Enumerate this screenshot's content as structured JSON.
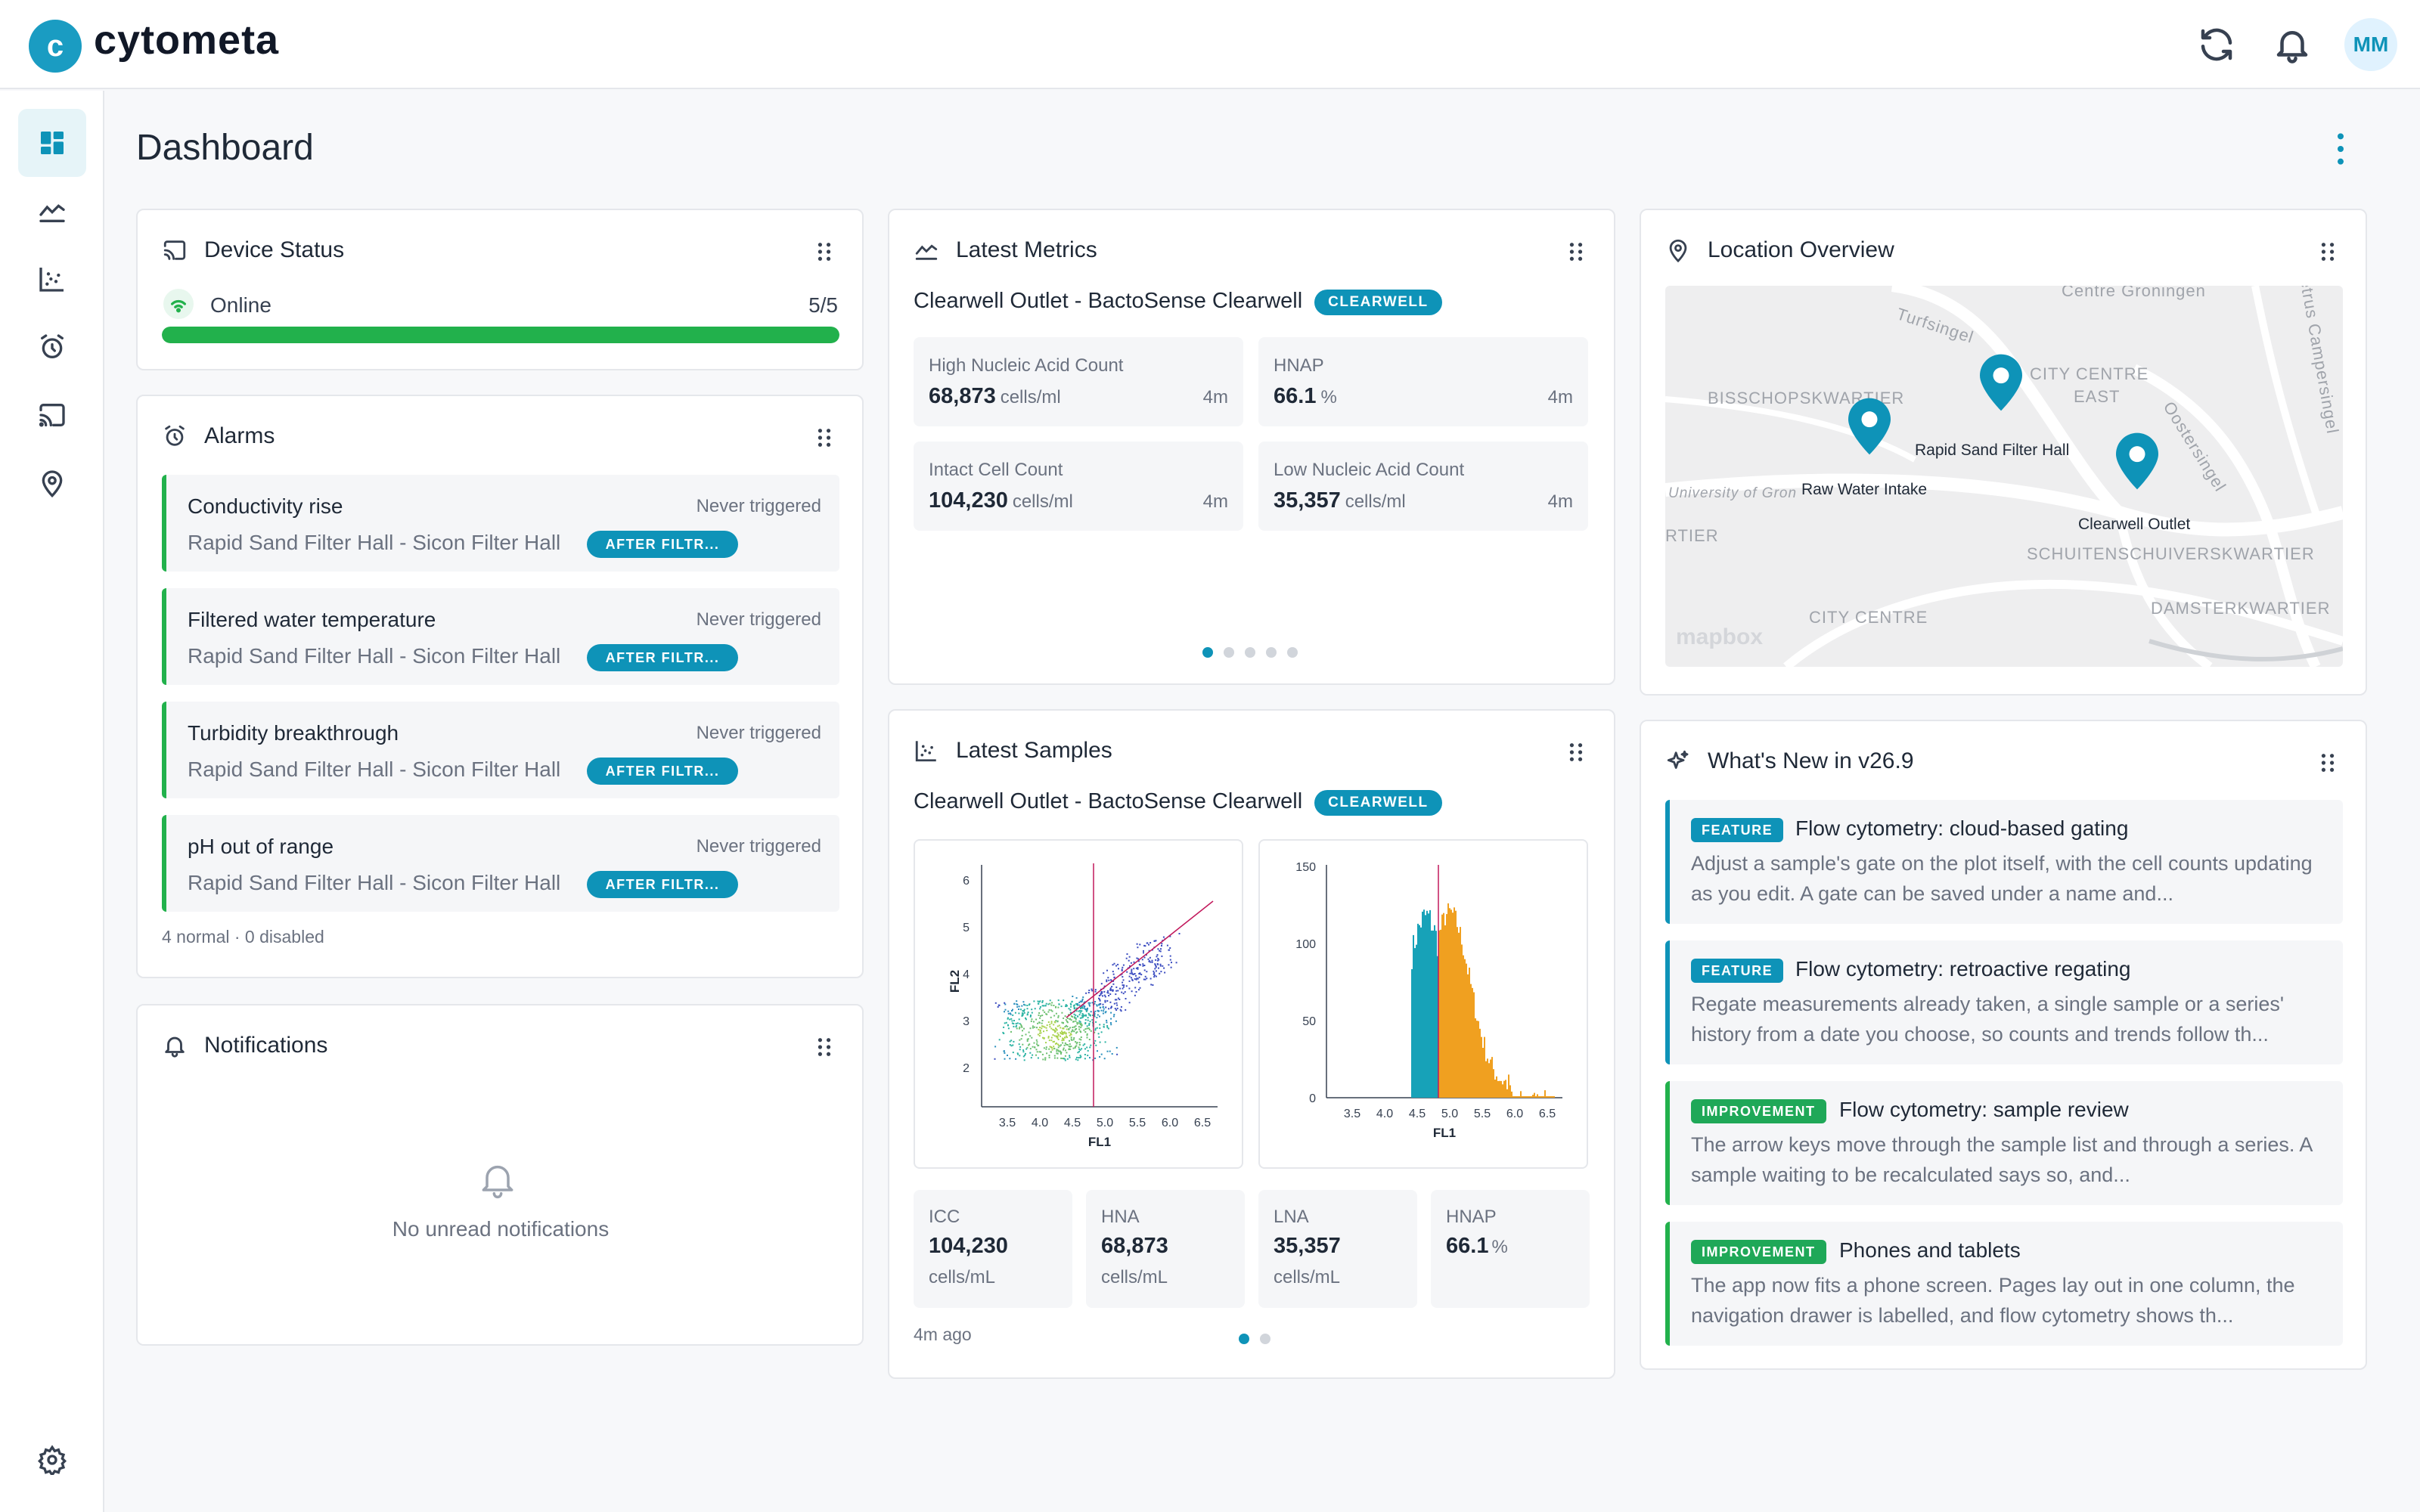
{
  "app": {
    "logo_letter": "c",
    "name": "cytometa",
    "user_initials": "MM"
  },
  "page": {
    "title": "Dashboard"
  },
  "device_status": {
    "title": "Device Status",
    "state": "Online",
    "count": "5/5",
    "online_fraction": 1.0,
    "colors": {
      "bar": "#22b14c"
    }
  },
  "alarms": {
    "title": "Alarms",
    "items": [
      {
        "name": "Conductivity rise",
        "location": "Rapid Sand Filter Hall - Sicon Filter Hall",
        "status": "Never triggered",
        "tag": "AFTER FILTR..."
      },
      {
        "name": "Filtered water temperature",
        "location": "Rapid Sand Filter Hall - Sicon Filter Hall",
        "status": "Never triggered",
        "tag": "AFTER FILTR..."
      },
      {
        "name": "Turbidity breakthrough",
        "location": "Rapid Sand Filter Hall - Sicon Filter Hall",
        "status": "Never triggered",
        "tag": "AFTER FILTR..."
      },
      {
        "name": "pH out of range",
        "location": "Rapid Sand Filter Hall - Sicon Filter Hall",
        "status": "Never triggered",
        "tag": "AFTER FILTR..."
      }
    ],
    "summary": "4 normal · 0 disabled"
  },
  "notifications": {
    "title": "Notifications",
    "empty": "No unread notifications"
  },
  "latest_metrics": {
    "title": "Latest Metrics",
    "device": "Clearwell Outlet - BactoSense Clearwell",
    "badge": "CLEARWELL",
    "metrics": [
      {
        "label": "High Nucleic Acid Count",
        "value": "68,873",
        "unit": "cells/ml",
        "age": "4m"
      },
      {
        "label": "HNAP",
        "value": "66.1",
        "unit": "%",
        "age": "4m"
      },
      {
        "label": "Intact Cell Count",
        "value": "104,230",
        "unit": "cells/ml",
        "age": "4m"
      },
      {
        "label": "Low Nucleic Acid Count",
        "value": "35,357",
        "unit": "cells/ml",
        "age": "4m"
      }
    ],
    "pages": 5,
    "active_page": 1
  },
  "latest_samples": {
    "title": "Latest Samples",
    "device": "Clearwell Outlet - BactoSense Clearwell",
    "badge": "CLEARWELL",
    "scatter": {
      "xlabel": "FL1",
      "ylabel": "FL2",
      "xticks": [
        "3.5",
        "4.0",
        "4.5",
        "5.0",
        "5.5",
        "6.0",
        "6.5"
      ],
      "yticks": [
        "2",
        "3",
        "4",
        "5",
        "6"
      ]
    },
    "histogram": {
      "xlabel": "FL1",
      "xticks": [
        "3.5",
        "4.0",
        "4.5",
        "5.0",
        "5.5",
        "6.0",
        "6.5"
      ],
      "yticks": [
        "0",
        "50",
        "100",
        "150"
      ],
      "colors": {
        "hna": "#f0a020",
        "lna": "#17a2b8"
      }
    },
    "stats": [
      {
        "label": "ICC",
        "value": "104,230",
        "unit": "cells/mL"
      },
      {
        "label": "HNA",
        "value": "68,873",
        "unit": "cells/mL"
      },
      {
        "label": "LNA",
        "value": "35,357",
        "unit": "cells/mL"
      },
      {
        "label": "HNAP",
        "value": "66.1",
        "unit": "%"
      }
    ],
    "age": "4m ago",
    "pages": 2,
    "active_page": 1
  },
  "location_overview": {
    "title": "Location Overview",
    "map_labels": [
      "Centre Groningen",
      "Turfsingel",
      "CITY CENTRE",
      "EAST",
      "BISSCHOPSKWARTIER",
      "University of Gron",
      "RTIER",
      "CITY CENTRE",
      "SCHUITENSCHUIVERSKWARTIER",
      "DAMSTERKWARTIER",
      "Oostersingel",
      "etrus Campersingel"
    ],
    "pins": [
      "Rapid Sand Filter Hall",
      "Raw Water Intake",
      "Clearwell Outlet"
    ],
    "attribution": "mapbox"
  },
  "whats_new": {
    "title": "What's New in v26.9",
    "items": [
      {
        "tag": "FEATURE",
        "title": "Flow cytometry: cloud-based gating",
        "body": "Adjust a sample's gate on the plot itself, with the cell counts updating as you edit. A gate can be saved under a name and..."
      },
      {
        "tag": "FEATURE",
        "title": "Flow cytometry: retroactive regating",
        "body": "Regate measurements already taken, a single sample or a series' history from a date you choose, so counts and trends follow th..."
      },
      {
        "tag": "IMPROVEMENT",
        "title": "Flow cytometry: sample review",
        "body": "The arrow keys move through the sample list and through a series. A sample waiting to be recalculated says so, and..."
      },
      {
        "tag": "IMPROVEMENT",
        "title": "Phones and tablets",
        "body": "The app now fits a phone screen. Pages lay out in one column, the navigation drawer is labelled, and flow cytometry shows th..."
      }
    ]
  },
  "colors": {
    "accent": "#0e93b8",
    "success": "#22b14c"
  }
}
